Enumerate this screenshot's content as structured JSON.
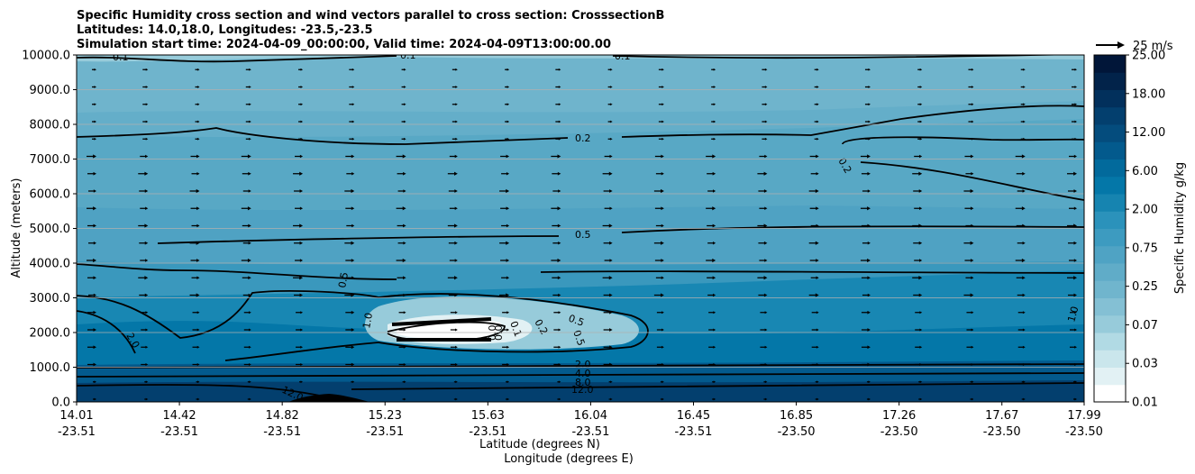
{
  "chart_data": {
    "type": "contour",
    "title_lines": [
      "Specific Humidity cross section and wind vectors parallel to cross section: CrosssectionB",
      "Latitudes: 14.0,18.0, Longitudes: -23.5,-23.5",
      "Simulation start time: 2024-04-09_00:00:00, Valid time: 2024-04-09T13:00:00.00"
    ],
    "ylabel": "Altitude (meters)",
    "xlabel_lat": "Latitude (degrees N)",
    "xlabel_lon": "Longitude (degrees E)",
    "ylim": [
      0,
      10000
    ],
    "yticks": [
      "0.0",
      "1000.0",
      "2000.0",
      "3000.0",
      "4000.0",
      "5000.0",
      "6000.0",
      "7000.0",
      "8000.0",
      "9000.0",
      "10000.0"
    ],
    "xticks": [
      {
        "lat": "14.01",
        "lon": "-23.51"
      },
      {
        "lat": "14.42",
        "lon": "-23.51"
      },
      {
        "lat": "14.82",
        "lon": "-23.51"
      },
      {
        "lat": "15.23",
        "lon": "-23.51"
      },
      {
        "lat": "15.63",
        "lon": "-23.51"
      },
      {
        "lat": "16.04",
        "lon": "-23.51"
      },
      {
        "lat": "16.45",
        "lon": "-23.51"
      },
      {
        "lat": "16.85",
        "lon": "-23.50"
      },
      {
        "lat": "17.26",
        "lon": "-23.50"
      },
      {
        "lat": "17.67",
        "lon": "-23.50"
      },
      {
        "lat": "17.99",
        "lon": "-23.50"
      }
    ],
    "colorbar": {
      "label": "Specific Humidity g/kg",
      "ticks": [
        "0.01",
        "0.03",
        "0.07",
        "0.25",
        "0.75",
        "2.00",
        "6.00",
        "12.00",
        "18.00",
        "25.00"
      ],
      "colors": [
        "#ffffff",
        "#e2f1f4",
        "#cae6ec",
        "#b1dae4",
        "#97cbda",
        "#84c0d4",
        "#70b5cd",
        "#60acc8",
        "#4fa3c4",
        "#3d9bc0",
        "#2b92bb",
        "#1684b0",
        "#0477a8",
        "#026a9c",
        "#035a8d",
        "#044c7d",
        "#033f6e",
        "#02305c",
        "#02234a",
        "#011639"
      ]
    },
    "quiver_key": "25 m/s",
    "contour_levels_labeled": [
      "0.1",
      "0.1",
      "0.1",
      "0.2",
      "0.2",
      "0.5",
      "0.5",
      "0.5",
      "0.2",
      "0.5",
      "0.0",
      "0.0",
      "0.1",
      "1.0",
      "1.0",
      "2.0",
      "2.0",
      "4.0",
      "8.0",
      "12.0",
      "12.0"
    ],
    "wind": "mostly parallel eastward flow, weak near surface"
  }
}
